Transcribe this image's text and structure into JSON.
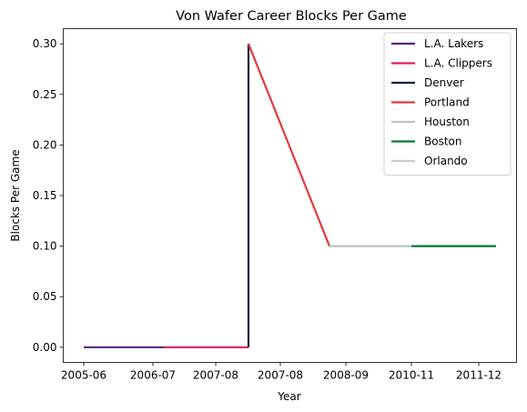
{
  "chart_data": {
    "type": "line",
    "title": "Von Wafer Career Blocks Per Game",
    "xlabel": "Year",
    "ylabel": "Blocks Per Game",
    "x_ticks": [
      "2005-06",
      "2006-07",
      "2007-08",
      "2007-08",
      "2008-09",
      "2010-11",
      "2011-12"
    ],
    "ylim": [
      -0.015,
      0.315
    ],
    "y_ticks": [
      "0.00",
      "0.05",
      "0.10",
      "0.15",
      "0.20",
      "0.25",
      "0.30"
    ],
    "legend_position": "top-right",
    "grid": false,
    "series": [
      {
        "name": "L.A. Lakers",
        "color": "#552583",
        "x": [
          "2005-06",
          "2006-07"
        ],
        "y": [
          0.0,
          0.0
        ]
      },
      {
        "name": "L.A. Clippers",
        "color": "#E01E5A",
        "x": [
          "2006-07",
          "2007-08"
        ],
        "y": [
          0.0,
          0.0
        ]
      },
      {
        "name": "Denver",
        "color": "#0E2240",
        "x": [
          "2007-08",
          "2007-08"
        ],
        "y": [
          0.0,
          0.3
        ]
      },
      {
        "name": "Portland",
        "color": "#E03A3E",
        "x": [
          "2007-08",
          "2008-09"
        ],
        "y": [
          0.3,
          0.1
        ]
      },
      {
        "name": "Houston",
        "color": "#BEC0C2",
        "x": [
          "2008-09",
          "2010-11"
        ],
        "y": [
          0.1,
          0.1
        ]
      },
      {
        "name": "Boston",
        "color": "#007A33",
        "x": [
          "2010-11",
          "2011-12"
        ],
        "y": [
          0.1,
          0.1
        ]
      },
      {
        "name": "Orlando",
        "color": "#C4CED4",
        "x": [
          "2011-12",
          "2011-12"
        ],
        "y": [
          0.1,
          0.1
        ]
      }
    ]
  }
}
